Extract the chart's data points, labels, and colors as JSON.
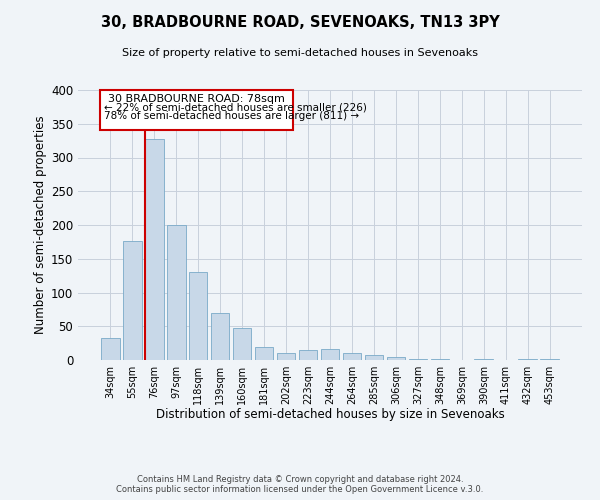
{
  "title": "30, BRADBOURNE ROAD, SEVENOAKS, TN13 3PY",
  "subtitle": "Size of property relative to semi-detached houses in Sevenoaks",
  "xlabel": "Distribution of semi-detached houses by size in Sevenoaks",
  "ylabel": "Number of semi-detached properties",
  "bin_labels": [
    "34sqm",
    "55sqm",
    "76sqm",
    "97sqm",
    "118sqm",
    "139sqm",
    "160sqm",
    "181sqm",
    "202sqm",
    "223sqm",
    "244sqm",
    "264sqm",
    "285sqm",
    "306sqm",
    "327sqm",
    "348sqm",
    "369sqm",
    "390sqm",
    "411sqm",
    "432sqm",
    "453sqm"
  ],
  "bar_values": [
    33,
    177,
    328,
    200,
    130,
    69,
    48,
    20,
    11,
    15,
    17,
    10,
    7,
    4,
    2,
    2,
    0,
    1,
    0,
    1,
    2
  ],
  "bar_color": "#c8d8e8",
  "bar_edge_color": "#7aaac8",
  "grid_color": "#c8d0dc",
  "background_color": "#f0f4f8",
  "marker_label": "30 BRADBOURNE ROAD: 78sqm",
  "marker_line_color": "#cc0000",
  "marker_box_color": "#cc0000",
  "annotation_line1": "← 22% of semi-detached houses are smaller (226)",
  "annotation_line2": "78% of semi-detached houses are larger (811) →",
  "footer_line1": "Contains HM Land Registry data © Crown copyright and database right 2024.",
  "footer_line2": "Contains public sector information licensed under the Open Government Licence v.3.0.",
  "ylim": [
    0,
    400
  ],
  "yticks": [
    0,
    50,
    100,
    150,
    200,
    250,
    300,
    350,
    400
  ]
}
